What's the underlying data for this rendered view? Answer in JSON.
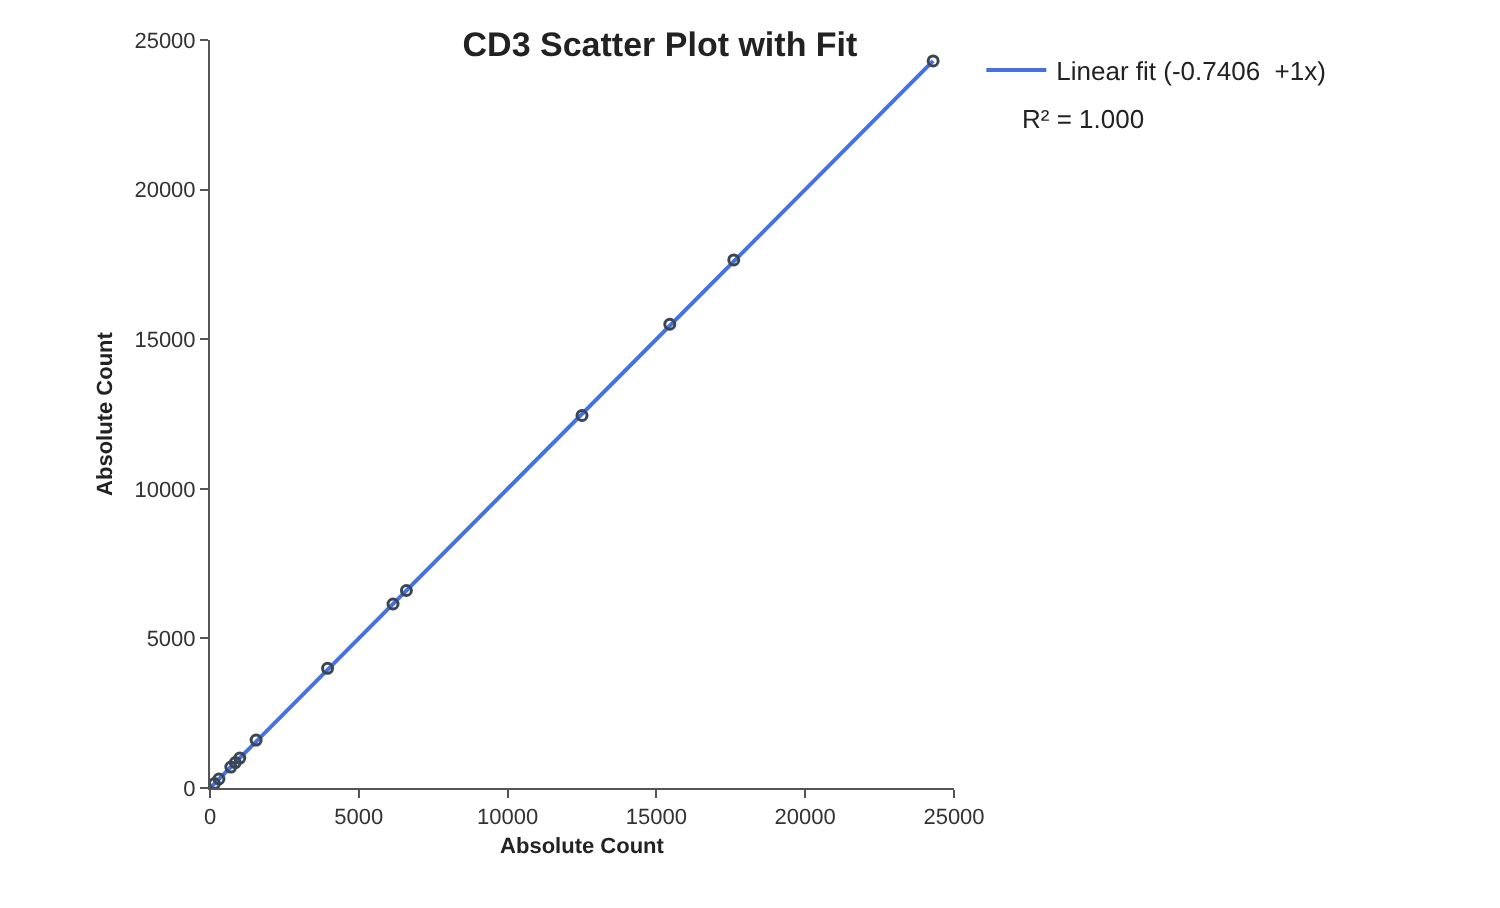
{
  "chart_data": {
    "type": "scatter",
    "title": "CD3 Scatter Plot with Fit",
    "xlabel": "Absolute Count",
    "ylabel": "Absolute Count",
    "xlim": [
      0,
      25000
    ],
    "xticks": [
      0,
      5000,
      10000,
      15000,
      20000,
      25000
    ],
    "ylim": [
      0,
      25000
    ],
    "yticks": [
      0,
      5000,
      10000,
      15000,
      20000,
      25000
    ],
    "grid": false,
    "legend": "top right",
    "annotations": [
      "R² = 1.000"
    ],
    "series": [
      {
        "marker": "circle",
        "color": "#3a4654",
        "x": [
          150,
          300,
          700,
          850,
          1000,
          1550,
          3950,
          6150,
          6600,
          12500,
          15450,
          17600,
          24300
        ],
        "values": [
          150,
          300,
          700,
          850,
          1000,
          1600,
          4000,
          6150,
          6600,
          12450,
          15500,
          17650,
          24300
        ]
      },
      {
        "type": "line",
        "marker": "none",
        "name": "Linear fit (-0.7406  +1x)",
        "color": "#4472e0",
        "line_style": "solid",
        "x": [
          0,
          24300
        ],
        "values": [
          0,
          24300
        ]
      }
    ]
  }
}
